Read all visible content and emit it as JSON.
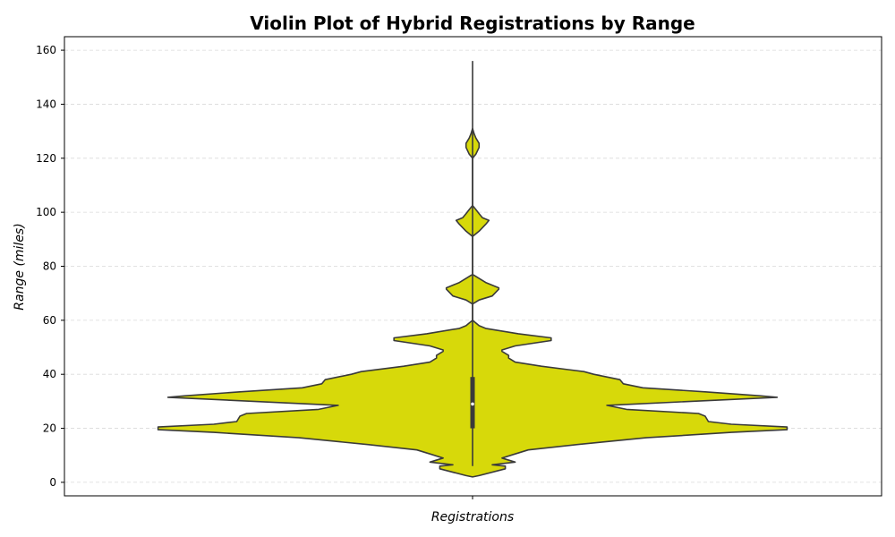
{
  "chart_data": {
    "type": "violin",
    "title": "Violin Plot of Hybrid Registrations by Range",
    "xlabel": "Registrations",
    "ylabel": "Range (miles)",
    "ylim": [
      -5,
      165
    ],
    "yticks": [
      0,
      20,
      40,
      60,
      80,
      100,
      120,
      140,
      160
    ],
    "grid": "horizontal dashed",
    "colors": {
      "fill": "#D7D90A",
      "outline": "#3a3a3a",
      "box": "#3a3a3a",
      "median": "#ffffff"
    },
    "min": 6,
    "max": 156,
    "q1": 20,
    "median": 29,
    "q3": 39,
    "density_profile": [
      [
        2,
        0.0
      ],
      [
        2.5,
        0.02
      ],
      [
        5,
        0.1
      ],
      [
        6,
        0.1
      ],
      [
        6.5,
        0.06
      ],
      [
        7.5,
        0.13
      ],
      [
        9,
        0.09
      ],
      [
        10.5,
        0.13
      ],
      [
        12,
        0.17
      ],
      [
        14,
        0.32
      ],
      [
        16.5,
        0.53
      ],
      [
        18.5,
        0.79
      ],
      [
        19.5,
        0.96
      ],
      [
        20.5,
        0.96
      ],
      [
        21.5,
        0.79
      ],
      [
        22.5,
        0.72
      ],
      [
        24.5,
        0.71
      ],
      [
        25.5,
        0.69
      ],
      [
        27,
        0.47
      ],
      [
        28.5,
        0.41
      ],
      [
        31.5,
        0.93
      ],
      [
        32,
        0.88
      ],
      [
        33.5,
        0.71
      ],
      [
        35,
        0.52
      ],
      [
        36.5,
        0.46
      ],
      [
        38,
        0.45
      ],
      [
        40,
        0.37
      ],
      [
        41,
        0.34
      ],
      [
        43,
        0.21
      ],
      [
        44.5,
        0.13
      ],
      [
        46,
        0.11
      ],
      [
        47,
        0.11
      ],
      [
        48.5,
        0.09
      ],
      [
        49,
        0.09
      ],
      [
        50.5,
        0.13
      ],
      [
        52.5,
        0.24
      ],
      [
        53.5,
        0.24
      ],
      [
        55,
        0.14
      ],
      [
        57,
        0.04
      ],
      [
        58,
        0.02
      ],
      [
        59,
        0.01
      ],
      [
        60,
        0.0
      ],
      [
        66,
        0.0
      ],
      [
        67.5,
        0.02
      ],
      [
        69,
        0.06
      ],
      [
        71.5,
        0.08
      ],
      [
        72,
        0.08
      ],
      [
        72.5,
        0.07
      ],
      [
        74,
        0.04
      ],
      [
        75.5,
        0.02
      ],
      [
        77,
        0.0
      ],
      [
        91,
        0.0
      ],
      [
        93,
        0.02
      ],
      [
        95.5,
        0.04
      ],
      [
        97,
        0.05
      ],
      [
        98,
        0.03
      ],
      [
        99.5,
        0.02
      ],
      [
        101,
        0.01
      ],
      [
        102.5,
        0.0
      ],
      [
        120,
        0.0
      ],
      [
        121.5,
        0.01
      ],
      [
        124,
        0.02
      ],
      [
        125.5,
        0.02
      ],
      [
        127.5,
        0.01
      ],
      [
        129,
        0.005
      ],
      [
        131,
        0.0
      ]
    ]
  }
}
